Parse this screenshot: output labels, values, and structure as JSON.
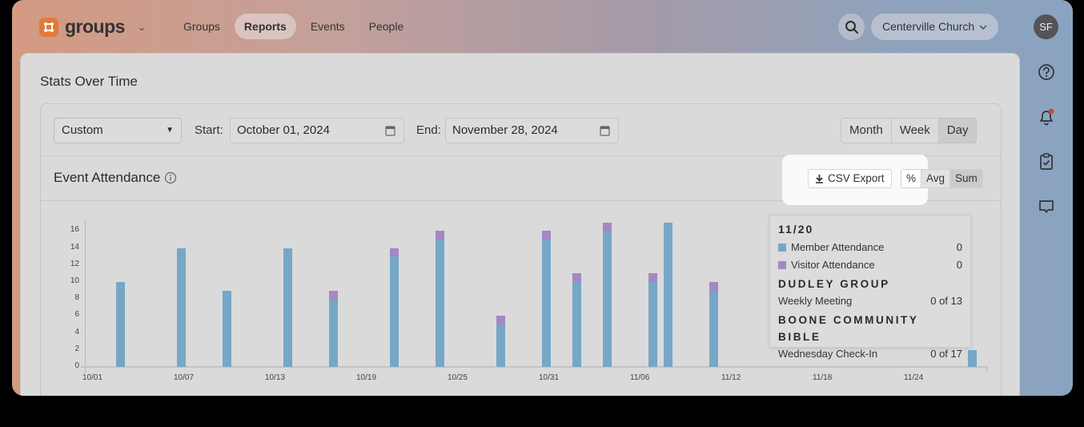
{
  "app": {
    "name": "groups",
    "accent_color": "#e3793a"
  },
  "nav": {
    "items": [
      {
        "label": "Groups",
        "active": false
      },
      {
        "label": "Reports",
        "active": true
      },
      {
        "label": "Events",
        "active": false
      },
      {
        "label": "People",
        "active": false
      }
    ]
  },
  "header": {
    "search_icon": "search-icon",
    "organization": "Centerville Church",
    "avatar_initials": "SF"
  },
  "right_rail": {
    "icons": [
      "help-icon",
      "bell-icon",
      "clipboard-check-icon",
      "chat-icon"
    ],
    "notification_dot_color": "#d4432e"
  },
  "page": {
    "title": "Stats Over Time"
  },
  "filters": {
    "range_select": "Custom",
    "start_label": "Start:",
    "start_value": "October 01, 2024",
    "end_label": "End:",
    "end_value": "November 28, 2024",
    "granularity": [
      {
        "label": "Month",
        "active": false
      },
      {
        "label": "Week",
        "active": false
      },
      {
        "label": "Day",
        "active": true
      }
    ]
  },
  "chart_header": {
    "title": "Event Attendance",
    "csv_export_label": "CSV Export",
    "modes": [
      {
        "label": "%",
        "active": false
      },
      {
        "label": "Avg",
        "active": false
      },
      {
        "label": "Sum",
        "active": true
      }
    ]
  },
  "tooltip": {
    "date": "11/20",
    "series": [
      {
        "label": "Member Attendance",
        "value": "0",
        "color": "#76a7c7"
      },
      {
        "label": "Visitor Attendance",
        "value": "0",
        "color": "#a686c4"
      }
    ],
    "groups": [
      {
        "name": "DUDLEY GROUP",
        "event": "Weekly Meeting",
        "value": "0 of 13"
      },
      {
        "name": "BOONE COMMUNITY BIBLE",
        "event": "Wednesday Check-In",
        "value": "0 of 17"
      }
    ]
  },
  "chart_data": {
    "type": "bar",
    "stacked": true,
    "title": "Event Attendance",
    "xlabel": "",
    "ylabel": "",
    "ylim": [
      0,
      17
    ],
    "yticks": [
      0,
      2,
      4,
      6,
      8,
      10,
      12,
      14,
      16
    ],
    "xticks": [
      "10/01",
      "10/07",
      "10/13",
      "10/19",
      "10/25",
      "10/31",
      "11/06",
      "11/12",
      "11/18",
      "11/24"
    ],
    "grid": false,
    "legend": [
      "Member Attendance",
      "Visitor Attendance"
    ],
    "categories": [
      "10/02",
      "10/06",
      "10/09",
      "10/13",
      "10/16",
      "10/20",
      "10/23",
      "10/27",
      "10/30",
      "11/01",
      "11/03",
      "11/06",
      "11/07",
      "11/10",
      "11/27"
    ],
    "series": [
      {
        "name": "Member Attendance",
        "color": "#76a7c7",
        "values": [
          10,
          14,
          9,
          14,
          8,
          13,
          15,
          5,
          15,
          10,
          16,
          10,
          17,
          9,
          2
        ]
      },
      {
        "name": "Visitor Attendance",
        "color": "#a686c4",
        "values": [
          0,
          0,
          0,
          0,
          1,
          1,
          1,
          1,
          1,
          1,
          1,
          1,
          0,
          1,
          0
        ]
      }
    ]
  }
}
